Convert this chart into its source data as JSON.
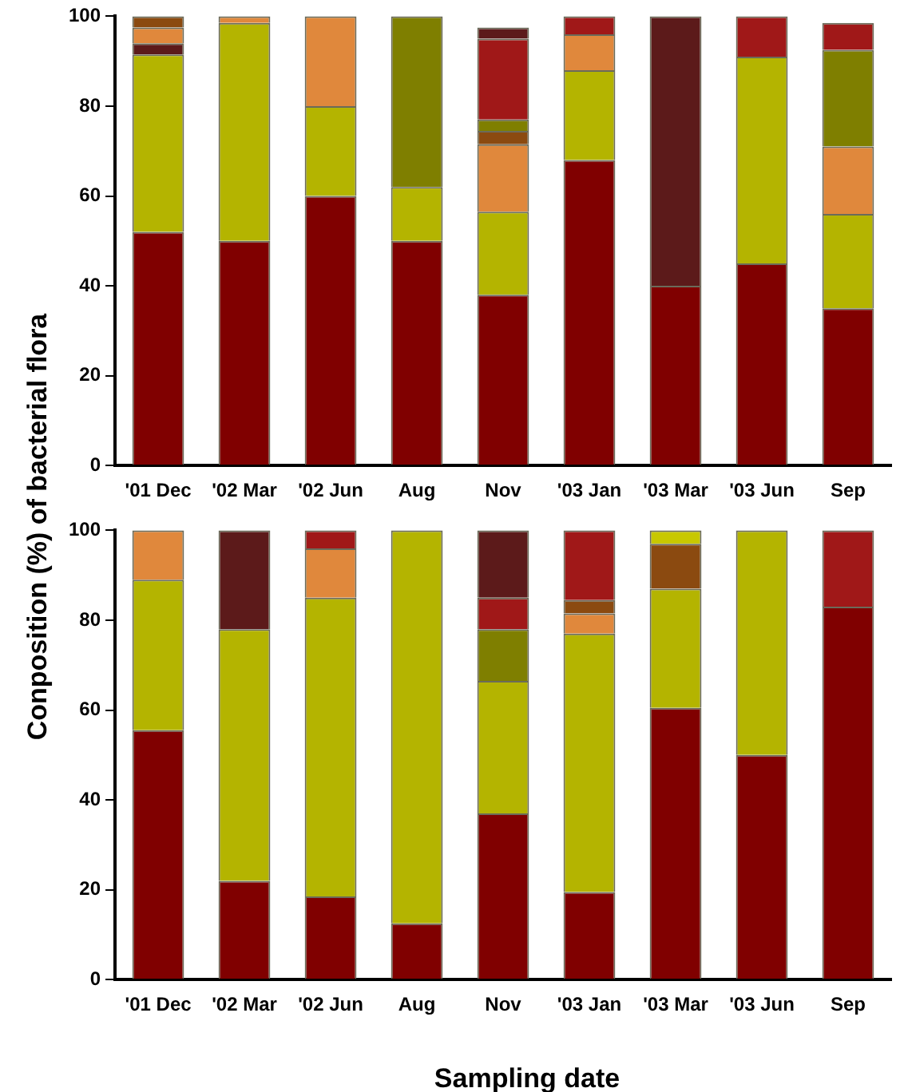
{
  "chart_data": [
    {
      "type": "bar",
      "stacked": true,
      "ylabel": "Conposition (%) of bacterial flora",
      "categories": [
        "'01 Dec",
        "'02 Mar",
        "'02 Jun",
        "Aug",
        "Nov",
        "'03 Jan",
        "'03 Mar",
        "'03 Jun",
        "Sep"
      ],
      "ylim": [
        0,
        100
      ],
      "yticks": [
        0,
        20,
        40,
        60,
        80,
        100
      ],
      "grid": false,
      "legend": false,
      "series": [
        {
          "color": "#800000",
          "values": [
            52,
            50,
            60,
            50,
            38,
            68,
            40,
            45,
            35
          ]
        },
        {
          "color": "#b4b400",
          "values": [
            39.5,
            48.5,
            20,
            12,
            18.5,
            20,
            null,
            46,
            21
          ]
        },
        {
          "color": "#5c1a1a",
          "values": [
            2.5,
            null,
            null,
            null,
            null,
            null,
            60,
            null,
            null
          ]
        },
        {
          "color": "#e0883c",
          "values": [
            3.5,
            1.5,
            20,
            null,
            15,
            8,
            null,
            null,
            15
          ]
        },
        {
          "color": "#8b4a10",
          "values": [
            2.5,
            null,
            null,
            null,
            3,
            null,
            null,
            null,
            null
          ]
        },
        {
          "color": "#7f7f00",
          "values": [
            null,
            null,
            null,
            38,
            2.5,
            null,
            null,
            null,
            21.5
          ]
        },
        {
          "color": "#a01818",
          "values": [
            null,
            null,
            null,
            null,
            18,
            4,
            null,
            9,
            6
          ]
        },
        {
          "color": "#5c1a1a",
          "values": [
            null,
            null,
            null,
            null,
            2.5,
            null,
            null,
            null,
            null
          ]
        }
      ]
    },
    {
      "type": "bar",
      "stacked": true,
      "xlabel": "Sampling date",
      "categories": [
        "'01 Dec",
        "'02 Mar",
        "'02 Jun",
        "Aug",
        "Nov",
        "'03 Jan",
        "'03 Mar",
        "'03 Jun",
        "Sep"
      ],
      "ylim": [
        0,
        100
      ],
      "yticks": [
        0,
        20,
        40,
        60,
        80,
        100
      ],
      "grid": false,
      "legend": false,
      "series": [
        {
          "color": "#800000",
          "values": [
            55.5,
            22,
            18.5,
            12.5,
            37,
            19.5,
            60.5,
            50,
            83
          ]
        },
        {
          "color": "#b4b400",
          "values": [
            33.5,
            56,
            66.5,
            87.5,
            29.5,
            57.5,
            26.5,
            50,
            null
          ]
        },
        {
          "color": "#e0883c",
          "values": [
            11,
            null,
            11,
            null,
            null,
            4.5,
            null,
            null,
            null
          ]
        },
        {
          "color": "#8b4a10",
          "values": [
            null,
            null,
            null,
            null,
            null,
            3,
            10,
            null,
            null
          ]
        },
        {
          "color": "#7f7f00",
          "values": [
            null,
            null,
            null,
            null,
            11.5,
            null,
            null,
            null,
            null
          ]
        },
        {
          "color": "#a01818",
          "values": [
            null,
            null,
            4,
            null,
            7,
            15.5,
            null,
            null,
            17
          ]
        },
        {
          "color": "#5c1a1a",
          "values": [
            null,
            22,
            null,
            null,
            15,
            null,
            null,
            null,
            null
          ]
        },
        {
          "color": "#c8c800",
          "values": [
            null,
            null,
            null,
            null,
            null,
            null,
            3,
            null,
            null
          ]
        }
      ]
    }
  ]
}
